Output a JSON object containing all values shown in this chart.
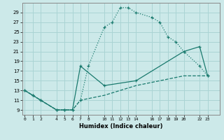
{
  "xlabel": "Humidex (Indice chaleur)",
  "background_color": "#cce9e9",
  "grid_color": "#aad4d4",
  "line_color": "#1a7a6e",
  "series1_x": [
    0,
    1,
    2,
    4,
    5,
    6,
    7,
    8,
    10,
    11,
    12,
    13,
    14,
    16,
    17,
    18,
    19,
    20,
    22,
    23
  ],
  "series1_y": [
    13,
    12,
    11,
    9,
    9,
    9,
    11,
    18,
    26,
    27,
    30,
    30,
    29,
    28,
    27,
    24,
    23,
    21,
    18,
    16
  ],
  "series2_x": [
    0,
    1,
    2,
    4,
    5,
    6,
    7,
    10,
    14,
    20,
    22,
    23
  ],
  "series2_y": [
    13,
    12,
    11,
    9,
    9,
    9,
    18,
    14,
    15,
    21,
    22,
    16
  ],
  "series3_x": [
    0,
    1,
    2,
    4,
    5,
    6,
    7,
    10,
    14,
    20,
    22,
    23
  ],
  "series3_y": [
    13,
    12,
    11,
    9,
    9,
    9,
    11,
    12,
    14,
    16,
    16,
    16
  ],
  "ytick_values": [
    9,
    11,
    13,
    15,
    17,
    19,
    21,
    23,
    25,
    27,
    29
  ],
  "xtick_values": [
    0,
    1,
    2,
    4,
    5,
    6,
    7,
    8,
    10,
    11,
    12,
    13,
    14,
    16,
    17,
    18,
    19,
    20,
    22,
    23
  ],
  "xlim": [
    -0.3,
    24.5
  ],
  "ylim": [
    8.0,
    31.0
  ]
}
